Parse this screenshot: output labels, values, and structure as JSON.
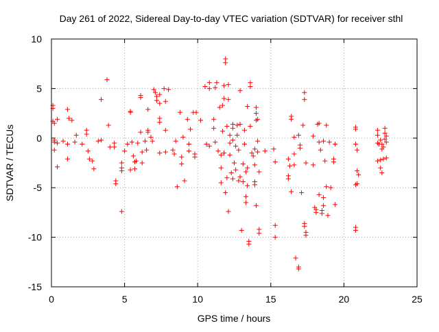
{
  "chart_data": {
    "type": "scatter",
    "title": "Day 261 of 2022, Sidereal Day-to-day VTEC variation (SDTVAR) for receiver sthl",
    "xlabel": "GPS time / hours",
    "ylabel": "SDTVAR / TECUs",
    "xlim": [
      0,
      25
    ],
    "ylim": [
      -15,
      10
    ],
    "xticks": [
      0,
      5,
      10,
      15,
      20,
      25
    ],
    "yticks": [
      -15,
      -10,
      -5,
      0,
      5,
      10
    ],
    "xtick_labels": [
      "0",
      "5",
      "10",
      "15",
      "20",
      "25"
    ],
    "ytick_labels": [
      "-15",
      "-10",
      "-5",
      "0",
      "5",
      "10"
    ],
    "grid": true,
    "marker": "plus",
    "series": [
      {
        "name": "SDTVAR",
        "color": "#ff0000",
        "points": [
          [
            0.1,
            3.3
          ],
          [
            0.1,
            3.0
          ],
          [
            0.1,
            1.7
          ],
          [
            0.2,
            1.5
          ],
          [
            0.2,
            -0.2
          ],
          [
            0.2,
            -0.4
          ],
          [
            0.2,
            -1.2
          ],
          [
            0.4,
            1.9
          ],
          [
            0.4,
            -0.5
          ],
          [
            0.4,
            -2.9
          ],
          [
            0.8,
            -0.3
          ],
          [
            1.1,
            2.9
          ],
          [
            1.1,
            -0.6
          ],
          [
            1.1,
            -2.1
          ],
          [
            1.2,
            2.0
          ],
          [
            1.4,
            1.8
          ],
          [
            1.6,
            -0.4
          ],
          [
            1.7,
            0.3
          ],
          [
            2.1,
            -0.6
          ],
          [
            2.4,
            0.8
          ],
          [
            2.4,
            0.4
          ],
          [
            2.5,
            -1.3
          ],
          [
            2.6,
            -2.1
          ],
          [
            2.8,
            -2.3
          ],
          [
            2.9,
            -3.1
          ],
          [
            3.2,
            -0.3
          ],
          [
            3.4,
            3.9
          ],
          [
            3.4,
            -0.2
          ],
          [
            3.8,
            5.9
          ],
          [
            3.9,
            1.3
          ],
          [
            4.0,
            -0.9
          ],
          [
            4.3,
            -0.5
          ],
          [
            4.3,
            -0.9
          ],
          [
            4.4,
            -4.3
          ],
          [
            4.4,
            -4.6
          ],
          [
            4.8,
            -2.5
          ],
          [
            4.8,
            -3.0
          ],
          [
            4.8,
            -3.3
          ],
          [
            4.8,
            -7.4
          ],
          [
            5.0,
            -1.3
          ],
          [
            5.2,
            -0.6
          ],
          [
            5.4,
            2.7
          ],
          [
            5.4,
            2.6
          ],
          [
            5.4,
            -3.2
          ],
          [
            5.5,
            -0.4
          ],
          [
            5.6,
            -1.8
          ],
          [
            5.7,
            -2.4
          ],
          [
            5.7,
            -3.1
          ],
          [
            5.8,
            -2.3
          ],
          [
            5.9,
            -0.5
          ],
          [
            6.1,
            4.3
          ],
          [
            6.1,
            4.1
          ],
          [
            6.1,
            0.6
          ],
          [
            6.2,
            -1.4
          ],
          [
            6.2,
            -2.5
          ],
          [
            6.4,
            -0.3
          ],
          [
            6.5,
            -1.2
          ],
          [
            6.6,
            2.9
          ],
          [
            6.6,
            0.8
          ],
          [
            6.6,
            0.6
          ],
          [
            6.8,
            0.1
          ],
          [
            6.9,
            -0.3
          ],
          [
            7.0,
            4.9
          ],
          [
            7.1,
            4.6
          ],
          [
            7.2,
            4.2
          ],
          [
            7.2,
            3.8
          ],
          [
            7.4,
            4.4
          ],
          [
            7.4,
            3.5
          ],
          [
            7.4,
            2.0
          ],
          [
            7.4,
            1.6
          ],
          [
            7.4,
            -1.5
          ],
          [
            7.7,
            5.0
          ],
          [
            7.8,
            3.7
          ],
          [
            7.8,
            0.8
          ],
          [
            7.8,
            -1.4
          ],
          [
            8.0,
            4.9
          ],
          [
            8.3,
            -1.2
          ],
          [
            8.4,
            -1.6
          ],
          [
            8.5,
            -0.3
          ],
          [
            8.6,
            -4.9
          ],
          [
            8.8,
            2.6
          ],
          [
            8.9,
            -1.9
          ],
          [
            8.9,
            -2.6
          ],
          [
            9.0,
            0.1
          ],
          [
            9.1,
            -4.3
          ],
          [
            9.3,
            1.9
          ],
          [
            9.4,
            -0.6
          ],
          [
            9.4,
            -1.3
          ],
          [
            9.5,
            0.9
          ],
          [
            9.7,
            2.6
          ],
          [
            9.8,
            -1.6
          ],
          [
            9.8,
            -1.9
          ],
          [
            9.9,
            2.6
          ],
          [
            10.2,
            1.8
          ],
          [
            10.5,
            5.2
          ],
          [
            10.6,
            -0.6
          ],
          [
            10.8,
            5.6
          ],
          [
            10.8,
            5.0
          ],
          [
            10.8,
            -0.8
          ],
          [
            11.1,
            1.9
          ],
          [
            11.1,
            1.0
          ],
          [
            11.2,
            5.1
          ],
          [
            11.2,
            -0.4
          ],
          [
            11.3,
            5.6
          ],
          [
            11.4,
            -1.3
          ],
          [
            11.5,
            3.1
          ],
          [
            11.6,
            -1.7
          ],
          [
            11.6,
            -3.0
          ],
          [
            11.6,
            -4.5
          ],
          [
            11.7,
            3.3
          ],
          [
            11.7,
            0.7
          ],
          [
            11.8,
            5.3
          ],
          [
            11.8,
            4.0
          ],
          [
            11.8,
            -1.5
          ],
          [
            11.9,
            8.0
          ],
          [
            11.9,
            7.6
          ],
          [
            11.9,
            -5.5
          ],
          [
            12.0,
            1.2
          ],
          [
            12.0,
            -4.0
          ],
          [
            12.1,
            -7.4
          ],
          [
            12.1,
            5.4
          ],
          [
            12.1,
            3.9
          ],
          [
            12.2,
            0.3
          ],
          [
            12.2,
            -0.5
          ],
          [
            12.2,
            -1.7
          ],
          [
            12.3,
            -3.5
          ],
          [
            12.4,
            1.4
          ],
          [
            12.4,
            1.0
          ],
          [
            12.4,
            -0.2
          ],
          [
            12.4,
            -4.1
          ],
          [
            12.5,
            -2.5
          ],
          [
            12.6,
            -0.8
          ],
          [
            12.6,
            -3.2
          ],
          [
            12.7,
            1.3
          ],
          [
            12.7,
            0.3
          ],
          [
            12.8,
            -1.2
          ],
          [
            12.8,
            -4.3
          ],
          [
            12.9,
            4.8
          ],
          [
            12.9,
            1.4
          ],
          [
            12.9,
            -3.9
          ],
          [
            13.0,
            -9.3
          ],
          [
            13.1,
            -2.6
          ],
          [
            13.1,
            -4.4
          ],
          [
            13.2,
            0.8
          ],
          [
            13.2,
            -0.6
          ],
          [
            13.3,
            -3.4
          ],
          [
            13.3,
            -5.9
          ],
          [
            13.3,
            -6.5
          ],
          [
            13.4,
            3.2
          ],
          [
            13.4,
            -3.0
          ],
          [
            13.4,
            -4.8
          ],
          [
            13.5,
            -10.4
          ],
          [
            13.5,
            -10.7
          ],
          [
            13.6,
            5.6
          ],
          [
            13.6,
            5.2
          ],
          [
            13.6,
            1.2
          ],
          [
            13.7,
            -1.5
          ],
          [
            13.8,
            -1.8
          ],
          [
            13.9,
            -1.1
          ],
          [
            13.9,
            -2.7
          ],
          [
            13.9,
            -4.4
          ],
          [
            13.9,
            -4.7
          ],
          [
            14.0,
            3.1
          ],
          [
            14.0,
            2.5
          ],
          [
            14.0,
            1.8
          ],
          [
            14.0,
            -6.8
          ],
          [
            14.1,
            1.9
          ],
          [
            14.1,
            -0.3
          ],
          [
            14.1,
            -1.4
          ],
          [
            14.2,
            -3.4
          ],
          [
            14.2,
            -9.2
          ],
          [
            14.2,
            -9.6
          ],
          [
            14.6,
            -1.3
          ],
          [
            15.2,
            -1.1
          ],
          [
            15.3,
            -2.4
          ],
          [
            15.3,
            -8.8
          ],
          [
            15.3,
            -10.0
          ],
          [
            16.2,
            -2.1
          ],
          [
            16.2,
            -3.8
          ],
          [
            16.2,
            -4.1
          ],
          [
            16.3,
            -2.8
          ],
          [
            16.4,
            2.2
          ],
          [
            16.4,
            1.9
          ],
          [
            16.4,
            -5.4
          ],
          [
            16.6,
            0.1
          ],
          [
            16.6,
            -1.6
          ],
          [
            16.6,
            -2.7
          ],
          [
            16.7,
            -12.1
          ],
          [
            16.9,
            0.3
          ],
          [
            16.9,
            -13.0
          ],
          [
            16.9,
            -13.2
          ],
          [
            17.0,
            -0.7
          ],
          [
            17.0,
            -1.0
          ],
          [
            17.1,
            -5.5
          ],
          [
            17.2,
            1.3
          ],
          [
            17.3,
            4.6
          ],
          [
            17.3,
            3.9
          ],
          [
            17.3,
            -8.6
          ],
          [
            17.3,
            -8.9
          ],
          [
            17.4,
            -2.5
          ],
          [
            17.4,
            -9.5
          ],
          [
            17.4,
            -9.8
          ],
          [
            17.9,
            0.2
          ],
          [
            17.9,
            -2.7
          ],
          [
            18.0,
            -7.0
          ],
          [
            18.1,
            -7.2
          ],
          [
            18.1,
            -7.5
          ],
          [
            18.2,
            1.4
          ],
          [
            18.3,
            1.5
          ],
          [
            18.3,
            -0.4
          ],
          [
            18.3,
            -5.7
          ],
          [
            18.4,
            -1.2
          ],
          [
            18.5,
            -7.3
          ],
          [
            18.5,
            -7.6
          ],
          [
            18.6,
            -0.3
          ],
          [
            18.6,
            -6.0
          ],
          [
            18.6,
            -6.8
          ],
          [
            18.7,
            -2.3
          ],
          [
            18.8,
            1.3
          ],
          [
            18.8,
            -4.9
          ],
          [
            18.9,
            -7.8
          ],
          [
            19.0,
            -0.4
          ],
          [
            19.1,
            -5.0
          ],
          [
            19.3,
            -2.1
          ],
          [
            19.3,
            -2.4
          ],
          [
            19.4,
            -0.6
          ],
          [
            19.4,
            -6.7
          ],
          [
            20.8,
            1.1
          ],
          [
            20.8,
            0.9
          ],
          [
            20.8,
            -0.6
          ],
          [
            20.8,
            -4.7
          ],
          [
            20.8,
            -9.0
          ],
          [
            20.8,
            -9.3
          ],
          [
            20.9,
            -1.2
          ],
          [
            20.9,
            -3.3
          ],
          [
            20.9,
            -4.6
          ],
          [
            21.0,
            -3.7
          ],
          [
            22.3,
            0.8
          ],
          [
            22.3,
            0.3
          ],
          [
            22.3,
            -0.5
          ],
          [
            22.3,
            -2.3
          ],
          [
            22.4,
            -0.6
          ],
          [
            22.5,
            -0.2
          ],
          [
            22.5,
            -2.2
          ],
          [
            22.5,
            -3.0
          ],
          [
            22.6,
            -0.6
          ],
          [
            22.6,
            -1.1
          ],
          [
            22.6,
            -3.5
          ],
          [
            22.7,
            -0.9
          ],
          [
            22.7,
            -2.1
          ],
          [
            22.8,
            1.0
          ],
          [
            22.8,
            0.5
          ],
          [
            22.8,
            -0.1
          ],
          [
            22.9,
            0.2
          ],
          [
            22.9,
            -0.4
          ],
          [
            22.9,
            -2.0
          ]
        ]
      }
    ]
  }
}
